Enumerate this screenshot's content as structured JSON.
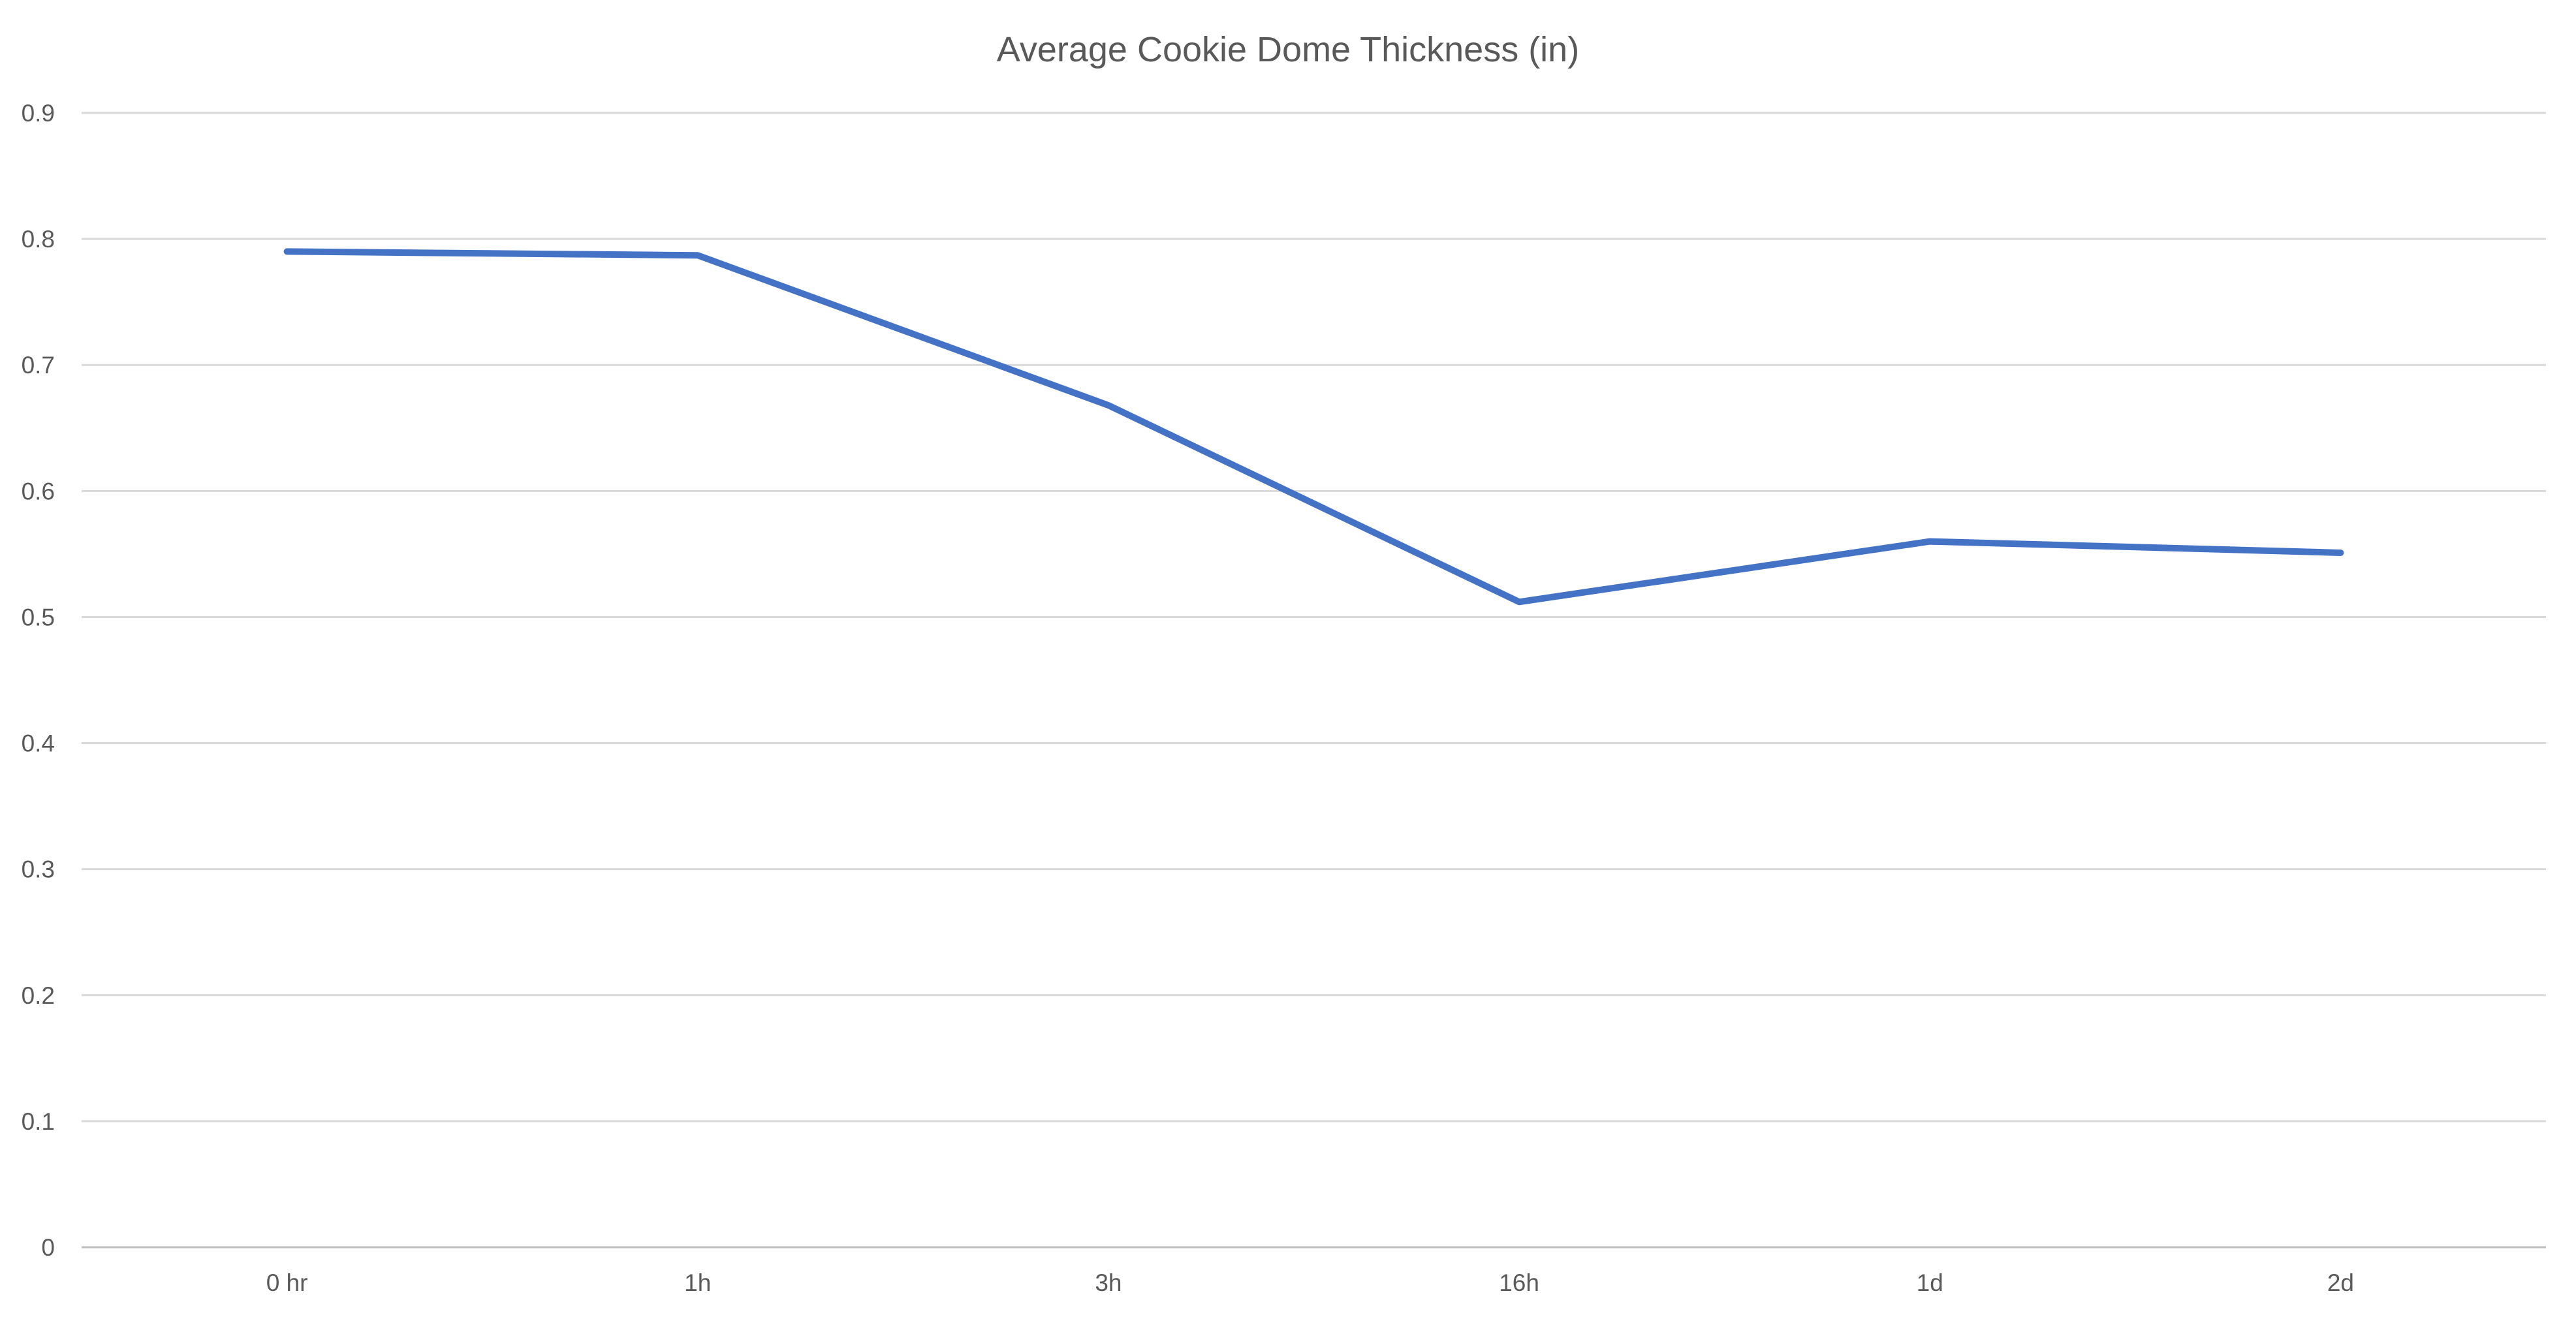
{
  "chart_data": {
    "type": "line",
    "title": "Average Cookie Dome Thickness (in)",
    "xlabel": "",
    "ylabel": "",
    "categories": [
      "0 hr",
      "1h",
      "3h",
      "16h",
      "1d",
      "2d"
    ],
    "series": [
      {
        "values": [
          0.79,
          0.787,
          0.668,
          0.512,
          0.56,
          0.551
        ],
        "color": "#4472c4"
      }
    ],
    "ylim": [
      0,
      0.9
    ],
    "yticks": [
      "0",
      "0.1",
      "0.2",
      "0.3",
      "0.4",
      "0.5",
      "0.6",
      "0.7",
      "0.8",
      "0.9"
    ],
    "grid": true,
    "legend": "none"
  }
}
